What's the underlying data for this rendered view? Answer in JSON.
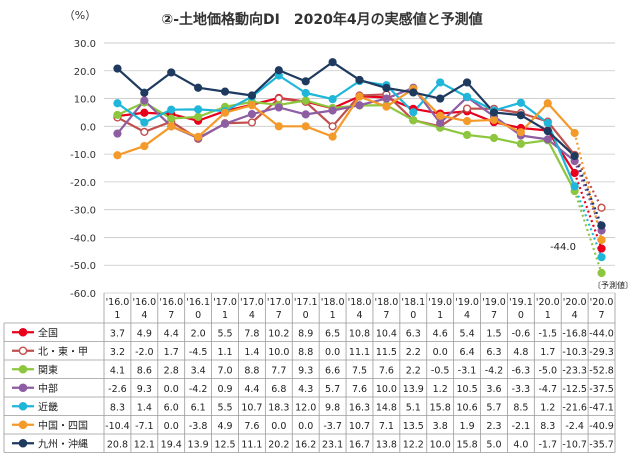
{
  "chart_data": {
    "type": "line",
    "title": "②-土地価格動向DI　2020年4月の実感値と予測値",
    "ylabel": "（%）",
    "ylim": [
      -60,
      30
    ],
    "ytick_step": 10,
    "categories": [
      [
        "'16.0",
        "1"
      ],
      [
        "'16.0",
        "4"
      ],
      [
        "'16.0",
        "7"
      ],
      [
        "'16.1",
        "0"
      ],
      [
        "'17.0",
        "1"
      ],
      [
        "'17.0",
        "4"
      ],
      [
        "'17.0",
        "7"
      ],
      [
        "'17.1",
        "0"
      ],
      [
        "'18.0",
        "1"
      ],
      [
        "'18.0",
        "4"
      ],
      [
        "'18.0",
        "7"
      ],
      [
        "'18.1",
        "0"
      ],
      [
        "'19.0",
        "1"
      ],
      [
        "'19.0",
        "4"
      ],
      [
        "'19.0",
        "7"
      ],
      [
        "'19.1",
        "0"
      ],
      [
        "'20.0",
        "1"
      ],
      [
        "'20.0",
        "4"
      ],
      [
        "'20.0",
        "7"
      ]
    ],
    "forecast_label": "〔予測値〕",
    "callout": "-44.0",
    "grid": true,
    "series": [
      {
        "name": "全国",
        "color": "#e8001c",
        "marker": "circle",
        "values": [
          3.7,
          4.9,
          4.4,
          2.0,
          5.5,
          7.8,
          10.2,
          8.9,
          6.5,
          10.8,
          10.4,
          6.3,
          4.6,
          5.4,
          1.5,
          -0.6,
          -1.5,
          -16.8,
          -44.0
        ]
      },
      {
        "name": "北・東・甲",
        "color": "#c0504d",
        "marker": "circle-open",
        "values": [
          3.2,
          -2.0,
          1.7,
          -4.5,
          1.1,
          1.4,
          10.0,
          8.8,
          0.0,
          11.1,
          11.5,
          2.2,
          0.0,
          6.4,
          6.3,
          4.8,
          1.7,
          -10.3,
          -29.3
        ]
      },
      {
        "name": "関東",
        "color": "#8dc63f",
        "marker": "circle",
        "values": [
          4.1,
          8.6,
          2.8,
          3.4,
          7.0,
          8.8,
          7.7,
          9.3,
          6.6,
          7.5,
          7.6,
          2.2,
          -0.5,
          -3.1,
          -4.2,
          -6.3,
          -5.0,
          -23.3,
          -52.8
        ]
      },
      {
        "name": "中部",
        "color": "#8e5ea2",
        "marker": "circle",
        "values": [
          -2.6,
          9.3,
          0.0,
          -4.2,
          0.9,
          4.4,
          6.8,
          4.3,
          5.7,
          7.6,
          10.0,
          13.9,
          1.2,
          10.5,
          3.6,
          -3.3,
          -4.7,
          -12.5,
          -37.5
        ]
      },
      {
        "name": "近畿",
        "color": "#1fb6d9",
        "marker": "circle",
        "values": [
          8.3,
          1.4,
          6.0,
          6.1,
          5.5,
          10.7,
          18.3,
          12.0,
          9.8,
          16.3,
          14.8,
          5.1,
          15.8,
          10.6,
          5.7,
          8.5,
          1.2,
          -21.6,
          -47.1
        ]
      },
      {
        "name": "中国・四国",
        "color": "#f39a2a",
        "marker": "circle",
        "values": [
          -10.4,
          -7.1,
          0.0,
          -3.8,
          4.9,
          7.6,
          0.0,
          0.0,
          -3.7,
          10.7,
          7.1,
          13.5,
          3.8,
          1.9,
          2.3,
          -2.1,
          8.3,
          -2.4,
          -40.9
        ]
      },
      {
        "name": "九州・沖縄",
        "color": "#1f3a5f",
        "marker": "circle",
        "values": [
          20.8,
          12.1,
          19.4,
          13.9,
          12.5,
          11.1,
          20.2,
          16.2,
          23.1,
          16.7,
          13.8,
          12.2,
          10.0,
          15.8,
          5.0,
          4.0,
          -1.7,
          -10.7,
          -35.7
        ]
      }
    ]
  }
}
